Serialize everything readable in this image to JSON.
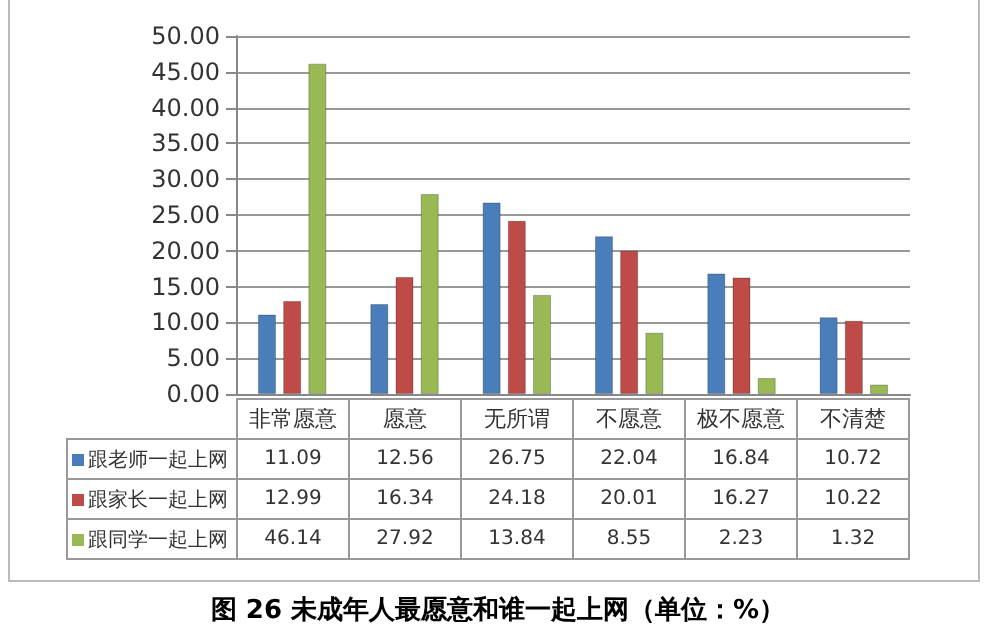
{
  "chart_data": {
    "type": "bar",
    "title": "图 26 未成年人最愿意和谁一起上网（单位：%）",
    "categories": [
      "非常愿意",
      "愿意",
      "无所谓",
      "不愿意",
      "极不愿意",
      "不清楚"
    ],
    "series": [
      {
        "name": "跟老师一起上网",
        "color": "#4a7ebb",
        "values": [
          11.09,
          12.56,
          26.75,
          22.04,
          16.84,
          10.72
        ]
      },
      {
        "name": "跟家长一起上网",
        "color": "#be4b48",
        "values": [
          12.99,
          16.34,
          24.18,
          20.01,
          16.27,
          10.22
        ]
      },
      {
        "name": "跟同学一起上网",
        "color": "#98b954",
        "values": [
          46.14,
          27.92,
          13.84,
          8.55,
          2.23,
          1.32
        ]
      }
    ],
    "ylim": [
      0,
      50
    ],
    "yticks": [
      {
        "value": 0,
        "label": "0.00"
      },
      {
        "value": 5,
        "label": "5.00"
      },
      {
        "value": 10,
        "label": "10.00"
      },
      {
        "value": 15,
        "label": "15.00"
      },
      {
        "value": 20,
        "label": "20.00"
      },
      {
        "value": 25,
        "label": "25.00"
      },
      {
        "value": 30,
        "label": "30.00"
      },
      {
        "value": 35,
        "label": "35.00"
      },
      {
        "value": 40,
        "label": "40.00"
      },
      {
        "value": 45,
        "label": "45.00"
      },
      {
        "value": 50,
        "label": "50.00"
      }
    ],
    "grid": "y",
    "legend": "bottom",
    "data_labels": true
  }
}
